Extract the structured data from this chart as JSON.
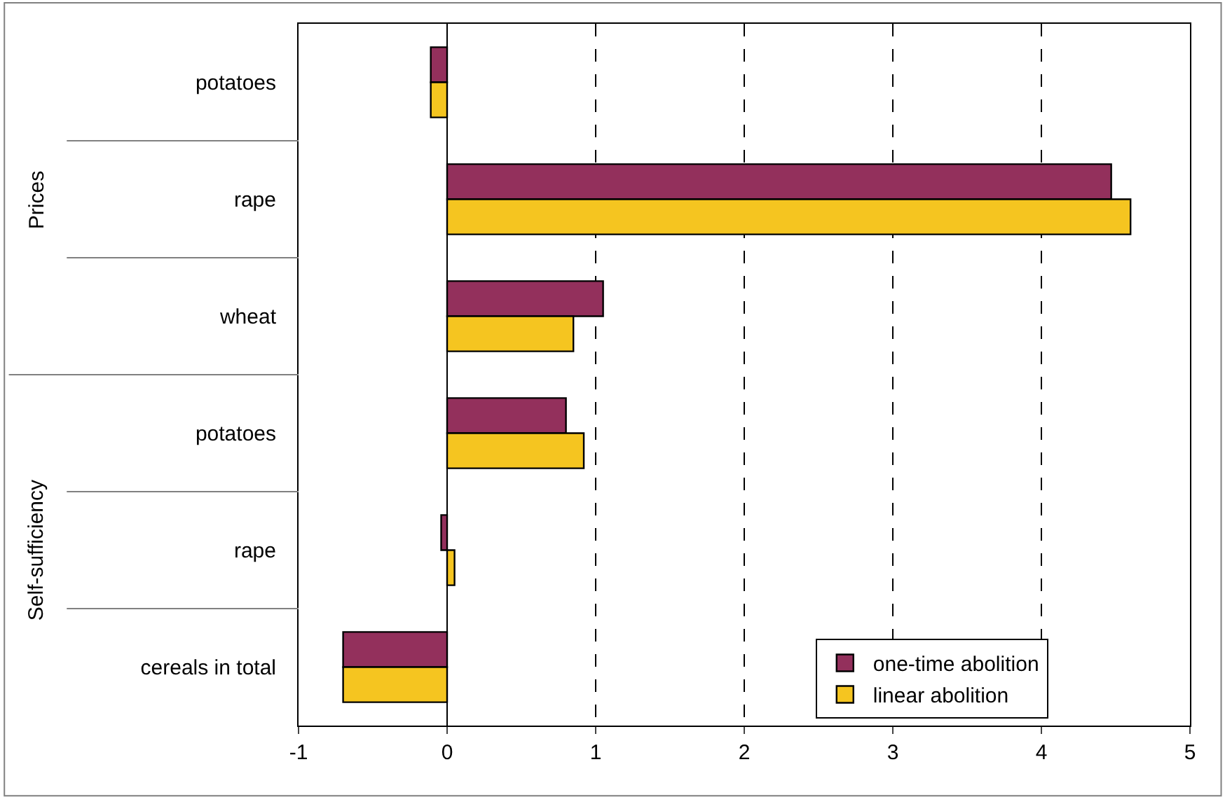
{
  "chart_data": {
    "type": "bar",
    "orientation": "horizontal",
    "categories": [
      "potatoes",
      "rape",
      "wheat",
      "potatoes",
      "rape",
      "cereals in total"
    ],
    "series": [
      {
        "name": "one-time abolition",
        "color": "#93305c",
        "values": [
          -0.11,
          4.47,
          1.05,
          0.8,
          -0.04,
          -0.7
        ]
      },
      {
        "name": "linear abolition",
        "color": "#f5c520",
        "values": [
          -0.11,
          4.6,
          0.85,
          0.92,
          0.05,
          -0.7
        ]
      }
    ],
    "annotations": [
      "Prices",
      "Self-sufficiency"
    ],
    "xlim": [
      -1,
      5
    ],
    "xticks": [
      -1,
      0,
      1,
      2,
      3,
      4,
      5
    ],
    "grid": "x",
    "legend": "bottom right"
  }
}
